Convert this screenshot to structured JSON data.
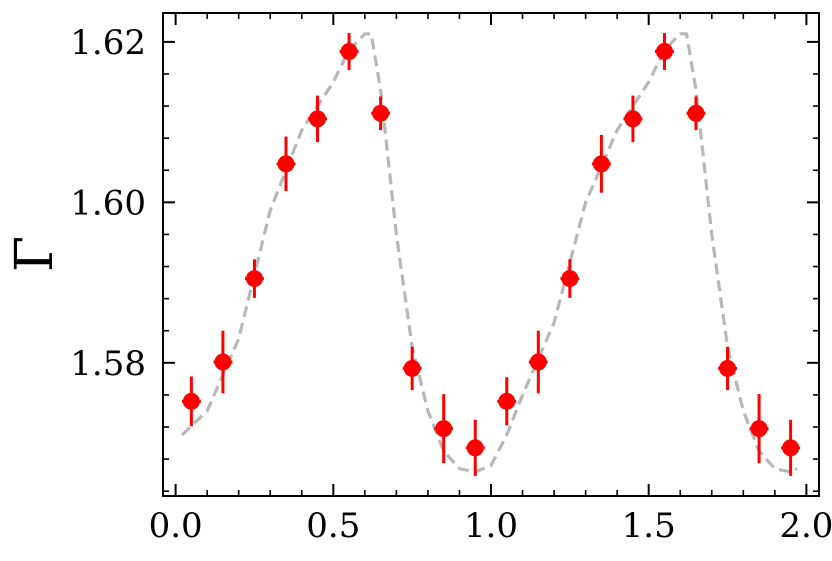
{
  "chart_data": {
    "type": "scatter",
    "title": "",
    "xlabel": "",
    "ylabel": "Γ",
    "xlim": [
      -0.04,
      2.04
    ],
    "ylim": [
      1.5634,
      1.6236
    ],
    "x_ticks": [
      {
        "value": 0.0,
        "label": "0.0"
      },
      {
        "value": 0.5,
        "label": "0.5"
      },
      {
        "value": 1.0,
        "label": "1.0"
      },
      {
        "value": 1.5,
        "label": "1.5"
      },
      {
        "value": 2.0,
        "label": "2.0"
      }
    ],
    "y_ticks": [
      {
        "value": 1.58,
        "label": "1.58"
      },
      {
        "value": 1.6,
        "label": "1.60"
      },
      {
        "value": 1.62,
        "label": "1.62"
      }
    ],
    "grid": false,
    "series": [
      {
        "kind": "errorbar",
        "color": "#ff0000",
        "x": [
          0.05,
          0.15,
          0.25,
          0.35,
          0.45,
          0.55,
          0.65,
          0.75,
          0.85,
          0.95,
          1.05,
          1.15,
          1.25,
          1.35,
          1.45,
          1.55,
          1.65,
          1.75,
          1.85,
          1.95
        ],
        "y": [
          1.5752,
          1.5801,
          1.5905,
          1.6048,
          1.6104,
          1.6188,
          1.6111,
          1.5793,
          1.5718,
          1.5694,
          1.5752,
          1.5801,
          1.5905,
          1.6048,
          1.6104,
          1.6188,
          1.6111,
          1.5793,
          1.5718,
          1.5694
        ],
        "xerr": [
          0.03,
          0.03,
          0.03,
          0.03,
          0.03,
          0.03,
          0.03,
          0.03,
          0.03,
          0.03,
          0.03,
          0.03,
          0.03,
          0.03,
          0.03,
          0.03,
          0.03,
          0.03,
          0.03,
          0.03
        ],
        "yerr": [
          0.0031,
          0.0039,
          0.0024,
          0.0034,
          0.0029,
          0.0023,
          0.0021,
          0.0027,
          0.0043,
          0.0035,
          0.003,
          0.0039,
          0.0024,
          0.0036,
          0.0029,
          0.0023,
          0.0021,
          0.0027,
          0.0043,
          0.0035
        ]
      },
      {
        "kind": "line",
        "style": "dashed",
        "color": "#b8b8b8",
        "x": [
          0.02,
          0.1,
          0.2,
          0.3,
          0.4,
          0.5,
          0.55,
          0.6,
          0.62,
          0.65,
          0.7,
          0.75,
          0.8,
          0.85,
          0.9,
          0.95,
          1.0,
          1.05,
          1.1,
          1.2,
          1.3,
          1.4,
          1.5,
          1.55,
          1.6,
          1.62,
          1.65,
          1.7,
          1.75,
          1.8,
          1.85,
          1.9,
          1.95,
          1.97
        ],
        "y": [
          1.571,
          1.574,
          1.583,
          1.599,
          1.609,
          1.615,
          1.619,
          1.621,
          1.621,
          1.614,
          1.596,
          1.582,
          1.574,
          1.569,
          1.5668,
          1.5664,
          1.5672,
          1.571,
          1.576,
          1.585,
          1.6,
          1.609,
          1.615,
          1.619,
          1.621,
          1.621,
          1.614,
          1.596,
          1.582,
          1.574,
          1.569,
          1.5668,
          1.5664,
          1.5668
        ]
      }
    ]
  }
}
